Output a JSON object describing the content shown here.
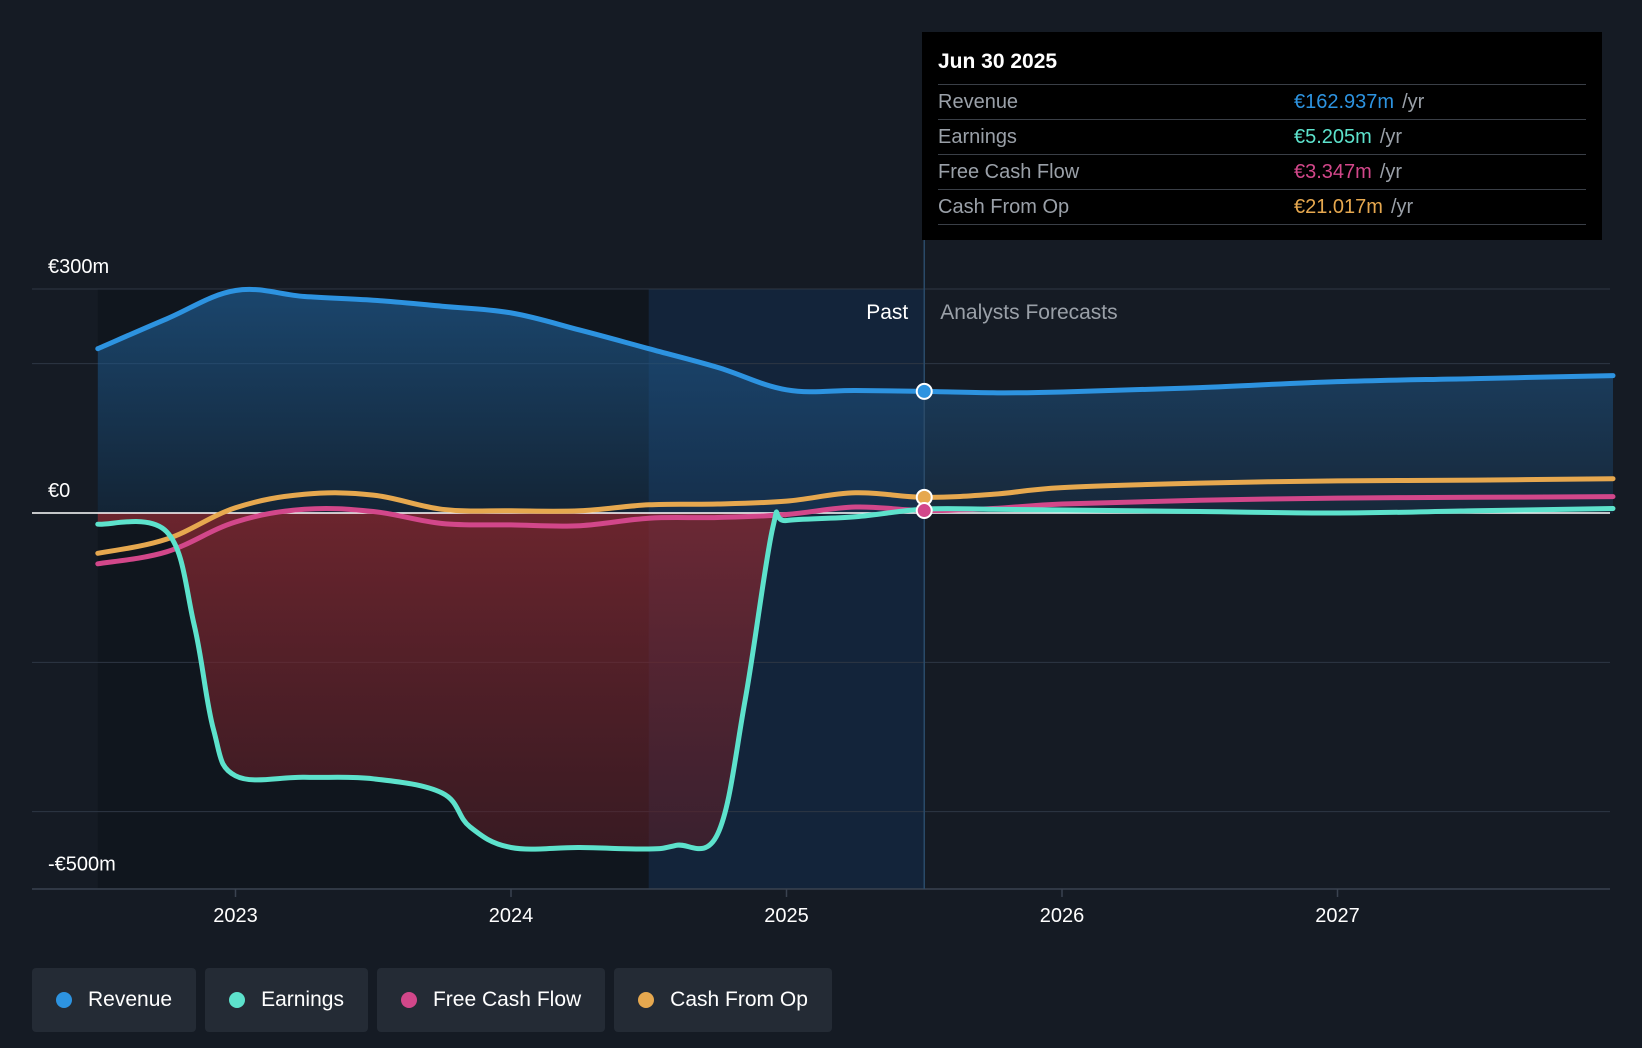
{
  "chart_data": {
    "type": "line",
    "x_range": [
      2022.4,
      2028.0
    ],
    "y_range": [
      -500,
      300
    ],
    "y_ticks": [
      {
        "value": 300,
        "label": "€300m"
      },
      {
        "value": 0,
        "label": "€0"
      },
      {
        "value": -500,
        "label": "-€500m"
      }
    ],
    "x_ticks": [
      {
        "value": 2023,
        "label": "2023"
      },
      {
        "value": 2024,
        "label": "2024"
      },
      {
        "value": 2025,
        "label": "2025"
      },
      {
        "value": 2026,
        "label": "2026"
      },
      {
        "value": 2027,
        "label": "2027"
      }
    ],
    "past_label": "Past",
    "forecast_label": "Analysts Forecasts",
    "divider_x": 2025.5,
    "highlight_start_x": 2024.5,
    "series": [
      {
        "name": "Revenue",
        "color": "#2d93e0",
        "points": [
          [
            2022.5,
            220
          ],
          [
            2022.75,
            260
          ],
          [
            2023.0,
            298
          ],
          [
            2023.25,
            290
          ],
          [
            2023.5,
            285
          ],
          [
            2023.75,
            277
          ],
          [
            2024.0,
            268
          ],
          [
            2024.25,
            245
          ],
          [
            2024.5,
            220
          ],
          [
            2024.75,
            195
          ],
          [
            2025.0,
            165
          ],
          [
            2025.25,
            164
          ],
          [
            2025.5,
            162.9
          ],
          [
            2025.75,
            161
          ],
          [
            2026.0,
            162
          ],
          [
            2026.5,
            168
          ],
          [
            2027.0,
            176
          ],
          [
            2027.5,
            180
          ],
          [
            2028.0,
            184
          ]
        ]
      },
      {
        "name": "Earnings",
        "color": "#5de2cc",
        "points": [
          [
            2022.5,
            -15
          ],
          [
            2022.75,
            -25
          ],
          [
            2022.85,
            -150
          ],
          [
            2022.92,
            -290
          ],
          [
            2023.0,
            -352
          ],
          [
            2023.25,
            -354
          ],
          [
            2023.5,
            -356
          ],
          [
            2023.75,
            -375
          ],
          [
            2023.85,
            -420
          ],
          [
            2024.0,
            -448
          ],
          [
            2024.25,
            -448
          ],
          [
            2024.5,
            -450
          ],
          [
            2024.6,
            -445
          ],
          [
            2024.75,
            -430
          ],
          [
            2024.85,
            -250
          ],
          [
            2024.95,
            -20
          ],
          [
            2025.0,
            -10
          ],
          [
            2025.25,
            -5
          ],
          [
            2025.5,
            5.2
          ],
          [
            2025.75,
            5
          ],
          [
            2026.0,
            4
          ],
          [
            2026.5,
            2
          ],
          [
            2027.0,
            0
          ],
          [
            2027.5,
            3
          ],
          [
            2028.0,
            6
          ]
        ]
      },
      {
        "name": "Free Cash Flow",
        "color": "#d2478a",
        "points": [
          [
            2022.5,
            -68
          ],
          [
            2022.75,
            -52
          ],
          [
            2023.0,
            -12
          ],
          [
            2023.25,
            5
          ],
          [
            2023.5,
            2
          ],
          [
            2023.75,
            -14
          ],
          [
            2024.0,
            -16
          ],
          [
            2024.25,
            -17
          ],
          [
            2024.5,
            -7
          ],
          [
            2024.75,
            -6
          ],
          [
            2025.0,
            -2
          ],
          [
            2025.25,
            8
          ],
          [
            2025.5,
            3.3
          ],
          [
            2025.75,
            6
          ],
          [
            2026.0,
            12
          ],
          [
            2026.5,
            17
          ],
          [
            2027.0,
            20
          ],
          [
            2027.5,
            21
          ],
          [
            2028.0,
            22
          ]
        ]
      },
      {
        "name": "Cash From Op",
        "color": "#e6a84f",
        "points": [
          [
            2022.5,
            -54
          ],
          [
            2022.75,
            -35
          ],
          [
            2023.0,
            7
          ],
          [
            2023.25,
            25
          ],
          [
            2023.5,
            24
          ],
          [
            2023.75,
            5
          ],
          [
            2024.0,
            3
          ],
          [
            2024.25,
            3
          ],
          [
            2024.5,
            11
          ],
          [
            2024.75,
            12
          ],
          [
            2025.0,
            16
          ],
          [
            2025.25,
            27
          ],
          [
            2025.5,
            21
          ],
          [
            2025.75,
            25
          ],
          [
            2026.0,
            34
          ],
          [
            2026.5,
            40
          ],
          [
            2027.0,
            43
          ],
          [
            2027.5,
            44
          ],
          [
            2028.0,
            46
          ]
        ]
      }
    ],
    "tooltip": {
      "date": "Jun 30 2025",
      "rows": [
        {
          "name": "Revenue",
          "value": "€162.937m",
          "unit": "/yr",
          "color": "#2d93e0"
        },
        {
          "name": "Earnings",
          "value": "€5.205m",
          "unit": "/yr",
          "color": "#5de2cc"
        },
        {
          "name": "Free Cash Flow",
          "value": "€3.347m",
          "unit": "/yr",
          "color": "#d2478a"
        },
        {
          "name": "Cash From Op",
          "value": "€21.017m",
          "unit": "/yr",
          "color": "#e6a84f"
        }
      ]
    }
  },
  "legend": [
    {
      "label": "Revenue",
      "color": "#2d93e0"
    },
    {
      "label": "Earnings",
      "color": "#5de2cc"
    },
    {
      "label": "Free Cash Flow",
      "color": "#d2478a"
    },
    {
      "label": "Cash From Op",
      "color": "#e6a84f"
    }
  ]
}
